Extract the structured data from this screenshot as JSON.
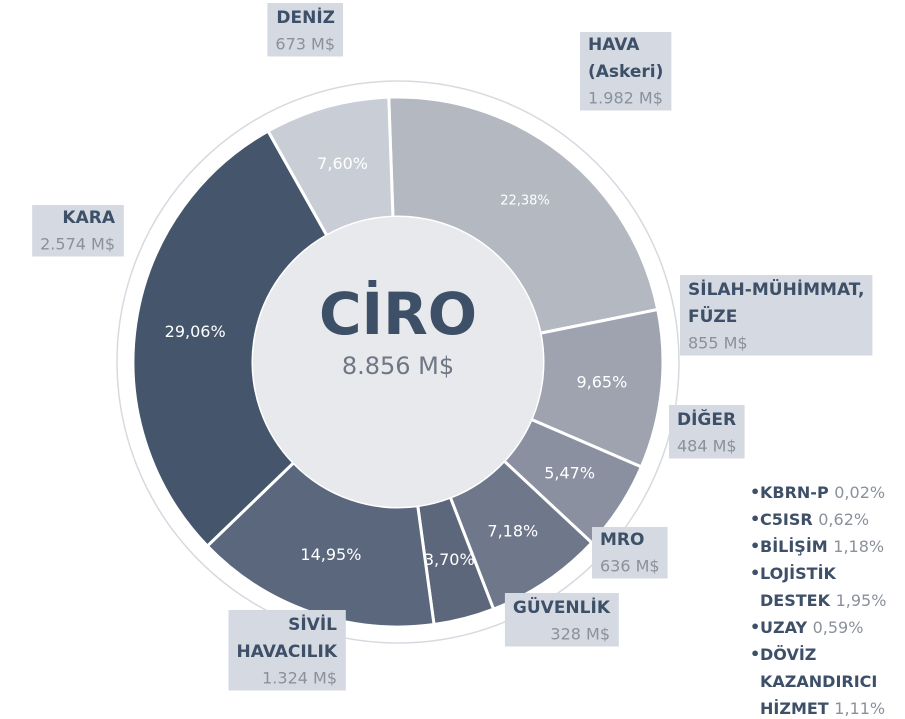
{
  "chart_data": {
    "type": "pie",
    "center_title": "CİRO",
    "center_value": "8.856 M$",
    "labels": [
      [
        "HAVA",
        "(Askeri)"
      ],
      [
        "SİLAH-MÜHİMMAT,",
        "FÜZE"
      ],
      [
        "DİĞER"
      ],
      [
        "MRO"
      ],
      [
        "GÜVENLİK"
      ],
      [
        "SİVİL",
        "HAVACILIK"
      ],
      [
        "KARA"
      ],
      [
        "DENİZ"
      ]
    ],
    "amount_labels": [
      "1.982 M$",
      "855 M$",
      "484 M$",
      "636 M$",
      "328 M$",
      "1.324 M$",
      "2.574 M$",
      "673 M$"
    ],
    "values": [
      22.38,
      9.65,
      5.47,
      7.18,
      3.7,
      14.95,
      29.06,
      7.6
    ],
    "value_labels": [
      "22,38%",
      "9,65%",
      "5,47%",
      "7,18%",
      "3,70%",
      "14,95%",
      "29,06%",
      "7,60%"
    ],
    "colors": [
      "#b4b8c0",
      "#9ea3af",
      "#8a90a0",
      "#6f778a",
      "#5d677b",
      "#5a677d",
      "#45566c",
      "#c9cdd6"
    ],
    "others": [
      {
        "name": [
          "KBRN-P"
        ],
        "label": "0,02%"
      },
      {
        "name": [
          "C5ISR"
        ],
        "label": "0,62%"
      },
      {
        "name": [
          "BİLİŞİM"
        ],
        "label": "1,18%"
      },
      {
        "name": [
          "LOJİSTİK",
          "DESTEK"
        ],
        "label": "1,95%"
      },
      {
        "name": [
          "UZAY"
        ],
        "label": "0,59%"
      },
      {
        "name": [
          "DÖVİZ",
          "KAZANDIRICI",
          "HİZMET"
        ],
        "label": "1,11%"
      }
    ]
  }
}
